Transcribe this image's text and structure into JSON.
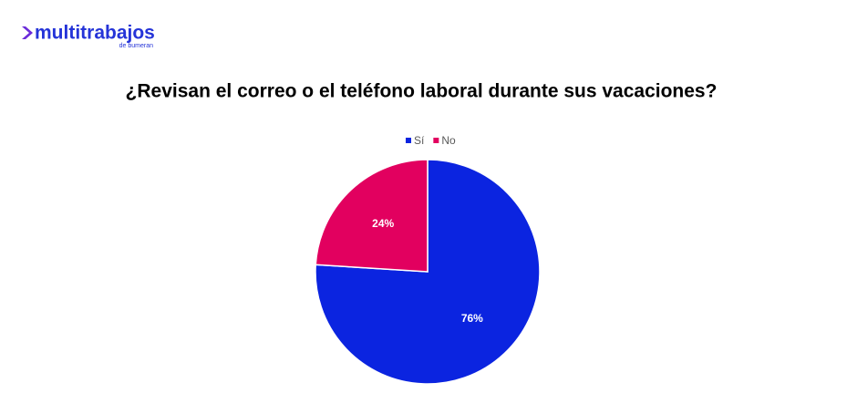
{
  "logo": {
    "name": "multitrabajos",
    "tagline": "de bumeran"
  },
  "chart_data": {
    "type": "pie",
    "title": "¿Revisan el correo o el teléfono laboral durante sus vacaciones?",
    "categories": [
      "Sí",
      "No"
    ],
    "values": [
      76,
      24
    ],
    "value_labels": [
      "76%",
      "24%"
    ],
    "colors": [
      "#0b24e0",
      "#e2005f"
    ],
    "legend": "top"
  }
}
